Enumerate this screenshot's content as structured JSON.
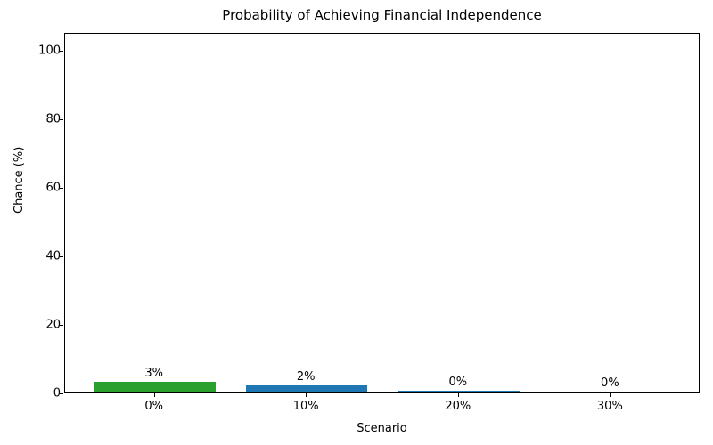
{
  "chart_data": {
    "type": "bar",
    "title": "Probability of Achieving Financial Independence",
    "xlabel": "Scenario",
    "ylabel": "Chance (%)",
    "categories": [
      "0%",
      "10%",
      "20%",
      "30%"
    ],
    "values": [
      3,
      2,
      0.5,
      0.25
    ],
    "bar_labels": [
      "3%",
      "2%",
      "0%",
      "0%"
    ],
    "bar_colors": [
      "#2ca02c",
      "#1f77b4",
      "#1f77b4",
      "#1f77b4"
    ],
    "yticks": [
      0,
      20,
      40,
      60,
      80,
      100
    ],
    "ylim": [
      0,
      105.3
    ],
    "grid": "off",
    "legend": "none",
    "spine_color": "#000000",
    "background_color": "#ffffff"
  }
}
